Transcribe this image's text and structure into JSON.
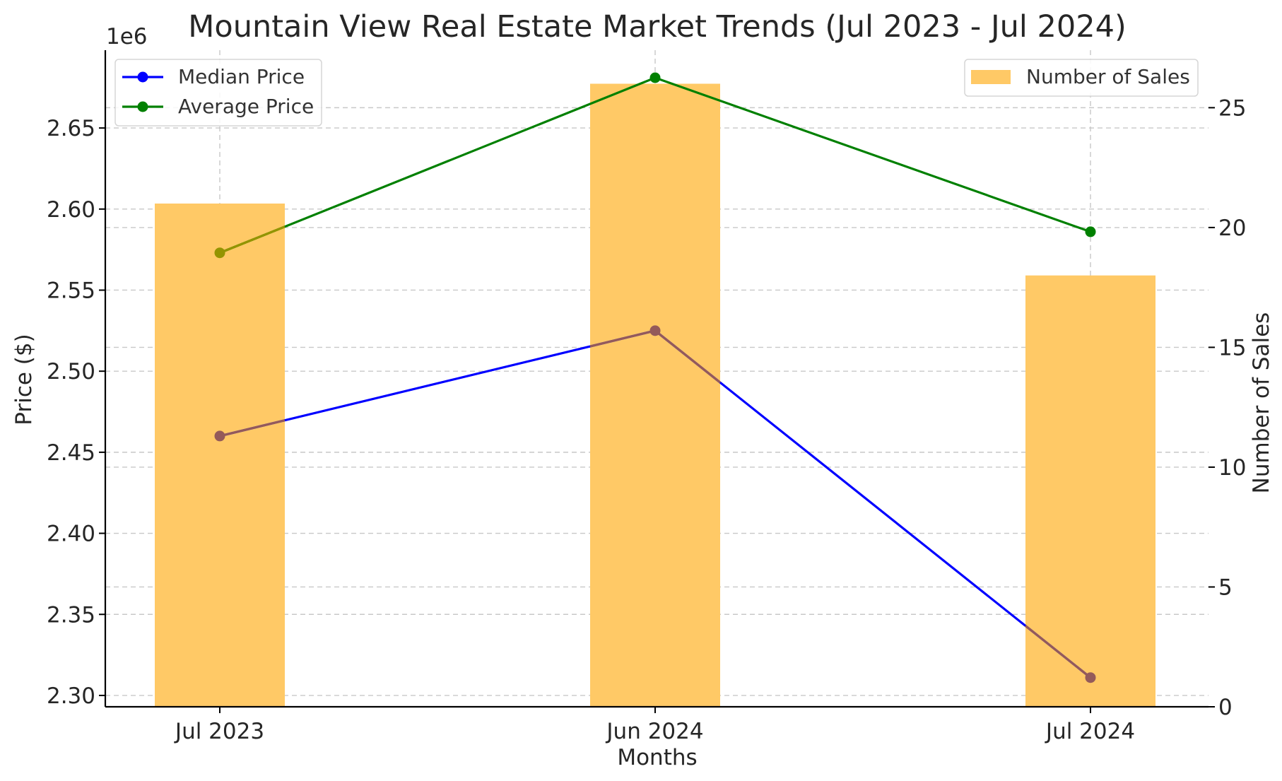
{
  "chart_data": {
    "type": "bar+line",
    "title": "Mountain View Real Estate Market Trends (Jul 2023 - Jul 2024)",
    "xlabel": "Months",
    "ylabel_left": "Price ($)",
    "ylabel_right": "Number of Sales",
    "left_offset_label": "1e6",
    "categories": [
      "Jul 2023",
      "Jun 2024",
      "Jul 2024"
    ],
    "left_ylim": [
      2.293,
      2.698
    ],
    "left_ticks": [
      2.3,
      2.35,
      2.4,
      2.45,
      2.5,
      2.55,
      2.6,
      2.65
    ],
    "left_tick_labels": [
      "2.30",
      "2.35",
      "2.40",
      "2.45",
      "2.50",
      "2.55",
      "2.60",
      "2.65"
    ],
    "right_ylim": [
      0,
      27.4
    ],
    "right_ticks": [
      0,
      5,
      10,
      15,
      20,
      25
    ],
    "right_tick_labels": [
      "0",
      "5",
      "10",
      "15",
      "20",
      "25"
    ],
    "grid": true,
    "bars": {
      "name": "Number of Sales",
      "axis": "right",
      "color": "#ffc966",
      "values": [
        21,
        26,
        18
      ]
    },
    "series": [
      {
        "name": "Median Price",
        "axis": "left",
        "color": "#0000ff",
        "marker_color": "#945a5a",
        "values": [
          2.46,
          2.525,
          2.311
        ]
      },
      {
        "name": "Average Price",
        "axis": "left",
        "color": "#008000",
        "marker_color": "#949400",
        "values": [
          2.573,
          2.681,
          2.586
        ]
      }
    ],
    "legend_left": {
      "placement": "top-left",
      "entries": [
        "Median Price",
        "Average Price"
      ]
    },
    "legend_right": {
      "placement": "top-right",
      "entries": [
        "Number of Sales"
      ]
    }
  }
}
